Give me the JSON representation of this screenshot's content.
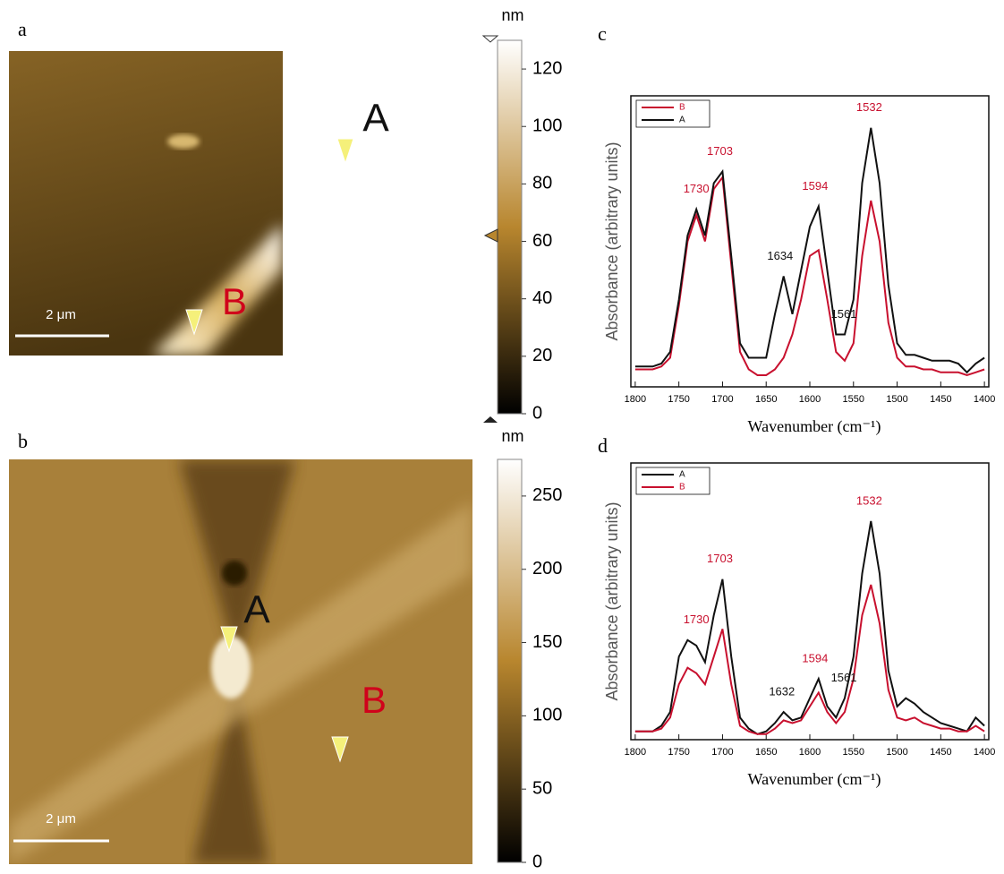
{
  "chart_data": [
    {
      "type": "image",
      "panel_label": "a",
      "features": [
        {
          "label": "A",
          "color": "#111111"
        },
        {
          "label": "B",
          "color": "#d0021b"
        }
      ],
      "scale_bar": "2 μm",
      "colorbar_label": "nm",
      "ylim": [
        0,
        130
      ],
      "yticks": [
        0,
        20,
        40,
        60,
        80,
        100,
        120
      ]
    },
    {
      "type": "image",
      "panel_label": "b",
      "features": [
        {
          "label": "A",
          "color": "#111111"
        },
        {
          "label": "B",
          "color": "#d0021b"
        }
      ],
      "scale_bar": "2 μm",
      "colorbar_label": "nm",
      "ylim": [
        0,
        275
      ],
      "yticks": [
        0,
        50,
        100,
        150,
        200,
        250
      ]
    },
    {
      "type": "line",
      "panel_label": "c",
      "y_label": "Absorbance (arbitrary units)",
      "x_label": "Wavenumber (cm⁻¹)",
      "xlim": [
        1805,
        1395
      ],
      "xticks": [
        1800,
        1750,
        1700,
        1650,
        1600,
        1550,
        1500,
        1450,
        1400
      ],
      "ylim": [
        0,
        1
      ],
      "x": [
        1800,
        1790,
        1780,
        1770,
        1760,
        1750,
        1740,
        1730,
        1720,
        1710,
        1700,
        1690,
        1680,
        1670,
        1660,
        1650,
        1640,
        1630,
        1620,
        1610,
        1600,
        1590,
        1580,
        1570,
        1560,
        1550,
        1540,
        1530,
        1520,
        1510,
        1500,
        1490,
        1480,
        1470,
        1460,
        1450,
        1440,
        1430,
        1420,
        1410,
        1400
      ],
      "series": [
        {
          "name": "B",
          "color": "#c8102e",
          "values": [
            0.06,
            0.06,
            0.06,
            0.07,
            0.1,
            0.28,
            0.5,
            0.59,
            0.5,
            0.68,
            0.72,
            0.42,
            0.12,
            0.06,
            0.04,
            0.04,
            0.06,
            0.1,
            0.18,
            0.3,
            0.45,
            0.47,
            0.3,
            0.12,
            0.09,
            0.15,
            0.45,
            0.64,
            0.5,
            0.22,
            0.1,
            0.07,
            0.07,
            0.06,
            0.06,
            0.05,
            0.05,
            0.05,
            0.04,
            0.05,
            0.06
          ]
        },
        {
          "name": "A",
          "color": "#111111",
          "values": [
            0.07,
            0.07,
            0.07,
            0.08,
            0.12,
            0.3,
            0.52,
            0.61,
            0.52,
            0.7,
            0.74,
            0.45,
            0.15,
            0.1,
            0.1,
            0.1,
            0.25,
            0.38,
            0.25,
            0.4,
            0.55,
            0.62,
            0.4,
            0.18,
            0.18,
            0.3,
            0.7,
            0.89,
            0.7,
            0.35,
            0.15,
            0.11,
            0.11,
            0.1,
            0.09,
            0.09,
            0.09,
            0.08,
            0.05,
            0.08,
            0.1
          ]
        }
      ],
      "peak_labels": [
        {
          "value": 1730,
          "color": "#c8102e"
        },
        {
          "value": 1703,
          "color": "#c8102e"
        },
        {
          "value": 1634,
          "color": "#111111"
        },
        {
          "value": 1594,
          "color": "#c8102e"
        },
        {
          "value": 1561,
          "color": "#111111"
        },
        {
          "value": 1532,
          "color": "#c8102e"
        }
      ]
    },
    {
      "type": "line",
      "panel_label": "d",
      "y_label": "Absorbance (arbitrary units)",
      "x_label": "Wavenumber (cm⁻¹)",
      "xlim": [
        1805,
        1395
      ],
      "xticks": [
        1800,
        1750,
        1700,
        1650,
        1600,
        1550,
        1500,
        1450,
        1400
      ],
      "ylim": [
        0,
        1
      ],
      "x": [
        1800,
        1790,
        1780,
        1770,
        1760,
        1750,
        1740,
        1730,
        1720,
        1710,
        1700,
        1690,
        1680,
        1670,
        1660,
        1650,
        1640,
        1630,
        1620,
        1610,
        1600,
        1590,
        1580,
        1570,
        1560,
        1550,
        1540,
        1530,
        1520,
        1510,
        1500,
        1490,
        1480,
        1470,
        1460,
        1450,
        1440,
        1430,
        1420,
        1410,
        1400
      ],
      "series": [
        {
          "name": "A",
          "color": "#111111",
          "values": [
            0.03,
            0.03,
            0.03,
            0.05,
            0.1,
            0.3,
            0.36,
            0.34,
            0.28,
            0.45,
            0.58,
            0.3,
            0.08,
            0.04,
            0.02,
            0.03,
            0.06,
            0.1,
            0.07,
            0.08,
            0.15,
            0.22,
            0.12,
            0.08,
            0.15,
            0.3,
            0.6,
            0.79,
            0.6,
            0.25,
            0.12,
            0.15,
            0.13,
            0.1,
            0.08,
            0.06,
            0.05,
            0.04,
            0.03,
            0.08,
            0.05
          ]
        },
        {
          "name": "B",
          "color": "#c8102e",
          "values": [
            0.03,
            0.03,
            0.03,
            0.04,
            0.08,
            0.2,
            0.26,
            0.24,
            0.2,
            0.3,
            0.4,
            0.2,
            0.05,
            0.03,
            0.02,
            0.02,
            0.04,
            0.07,
            0.06,
            0.07,
            0.12,
            0.17,
            0.1,
            0.06,
            0.1,
            0.22,
            0.45,
            0.56,
            0.42,
            0.18,
            0.08,
            0.07,
            0.08,
            0.06,
            0.05,
            0.04,
            0.04,
            0.03,
            0.03,
            0.05,
            0.03
          ]
        }
      ],
      "peak_labels": [
        {
          "value": 1730,
          "color": "#c8102e"
        },
        {
          "value": 1703,
          "color": "#c8102e"
        },
        {
          "value": 1632,
          "color": "#111111"
        },
        {
          "value": 1594,
          "color": "#c8102e"
        },
        {
          "value": 1561,
          "color": "#111111"
        },
        {
          "value": 1532,
          "color": "#c8102e"
        }
      ]
    }
  ]
}
